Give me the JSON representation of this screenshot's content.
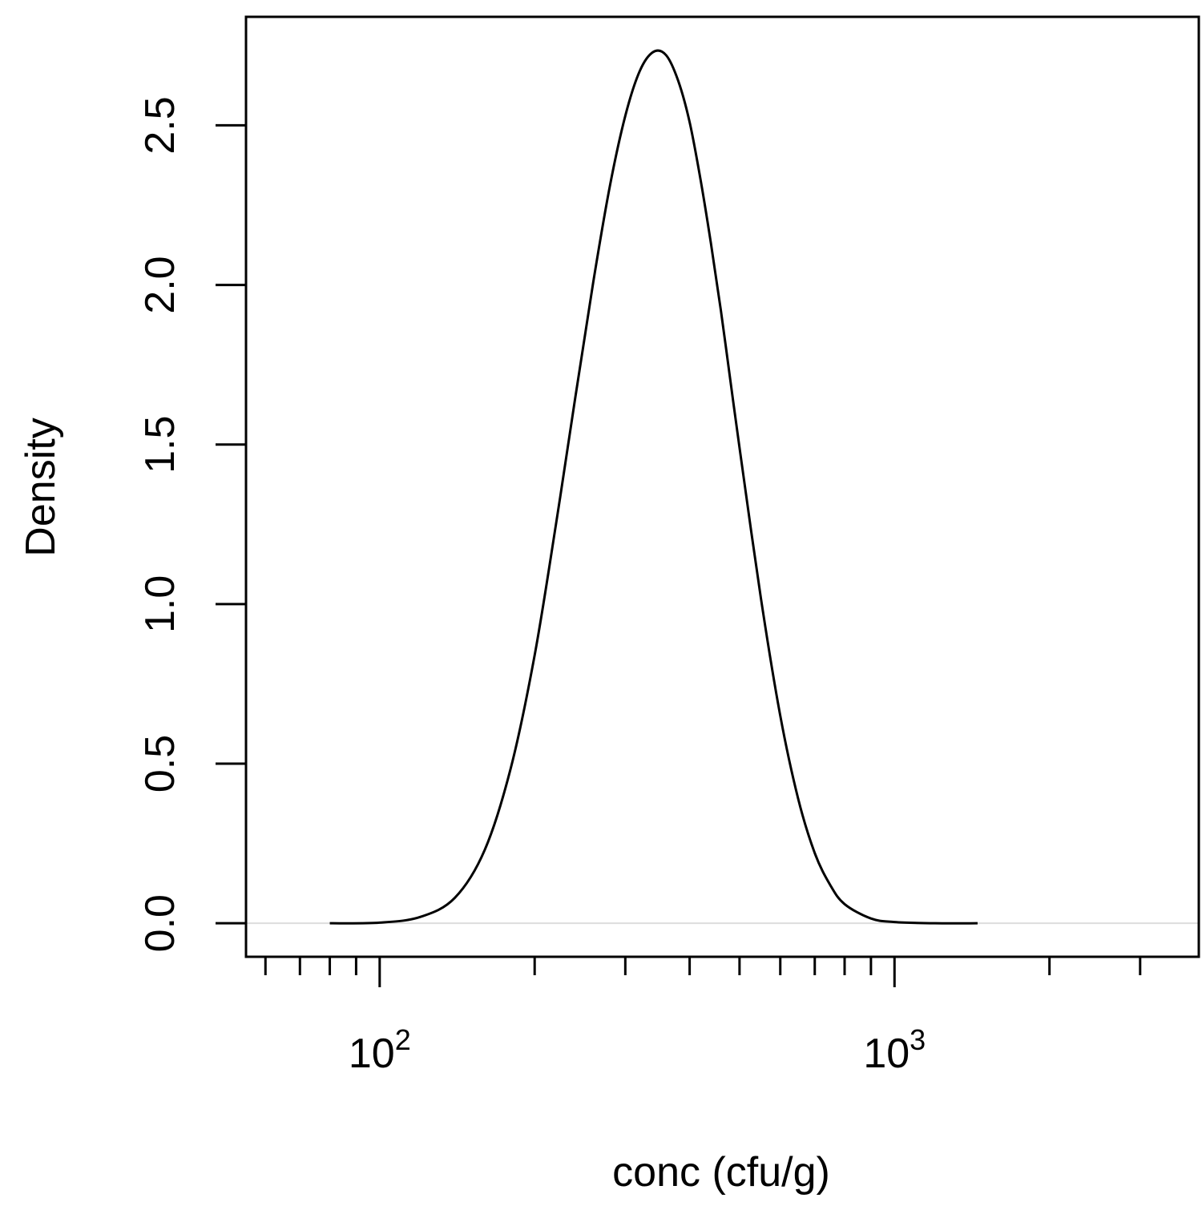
{
  "chart_data": {
    "type": "line",
    "title": "",
    "xlabel": "conc (cfu/g)",
    "ylabel": "Density",
    "x_scale": "log10",
    "xlim": [
      55,
      3900
    ],
    "ylim": [
      -0.105,
      2.84
    ],
    "x_ticks": [
      {
        "value": 100,
        "label": "10",
        "exponent": "2"
      },
      {
        "value": 1000,
        "label": "10",
        "exponent": "3"
      }
    ],
    "x_minor_ticks": [
      60,
      70,
      80,
      90,
      200,
      300,
      400,
      500,
      600,
      700,
      800,
      900,
      2000,
      3000
    ],
    "y_ticks": [
      {
        "value": 0.0,
        "label": "0.0"
      },
      {
        "value": 0.5,
        "label": "0.5"
      },
      {
        "value": 1.0,
        "label": "1.0"
      },
      {
        "value": 1.5,
        "label": "1.5"
      },
      {
        "value": 2.0,
        "label": "2.0"
      },
      {
        "value": 2.5,
        "label": "2.5"
      }
    ],
    "zero_line": true,
    "grid": false,
    "series": [
      {
        "color": "#000000",
        "x": [
          80,
          100,
          120,
          140,
          160,
          180,
          200,
          220,
          240,
          260,
          280,
          300,
          320,
          340,
          360,
          380,
          400,
          420,
          440,
          460,
          480,
          500,
          550,
          600,
          650,
          700,
          750,
          800,
          900,
          1000,
          1200,
          1450
        ],
        "y": [
          0.0,
          0.002,
          0.02,
          0.08,
          0.23,
          0.49,
          0.84,
          1.25,
          1.65,
          2.01,
          2.31,
          2.53,
          2.67,
          2.73,
          2.72,
          2.64,
          2.51,
          2.33,
          2.13,
          1.92,
          1.7,
          1.49,
          1.02,
          0.65,
          0.39,
          0.22,
          0.12,
          0.06,
          0.015,
          0.004,
          0.0,
          0.0
        ]
      }
    ]
  },
  "colors": {
    "curve": "#000000",
    "axes": "#000000",
    "zero_line": "#dddddd",
    "background": "#ffffff"
  }
}
